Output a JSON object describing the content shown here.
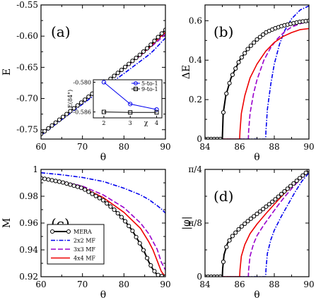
{
  "figure": {
    "legend": [
      {
        "label": "MERA",
        "color": "#000000",
        "dash": "",
        "marker": "circle"
      },
      {
        "label": "2x2 MF",
        "color": "#0000ee",
        "dash": "6,2,1.5,2",
        "marker": ""
      },
      {
        "label": "3x3 MF",
        "color": "#9900cc",
        "dash": "7,3",
        "marker": ""
      },
      {
        "label": "4x4 MF",
        "color": "#ee0000",
        "dash": "",
        "marker": ""
      }
    ]
  },
  "chart_data": [
    {
      "id": "a",
      "type": "line",
      "panel_label": "(a)",
      "xlabel": "θ",
      "ylabel": "E",
      "xlim": [
        60,
        90
      ],
      "ylim": [
        -0.765,
        -0.55
      ],
      "xticks": [
        {
          "v": 60,
          "l": "60"
        },
        {
          "v": 70,
          "l": "70"
        },
        {
          "v": 80,
          "l": "80"
        },
        {
          "v": 90,
          "l": "90"
        }
      ],
      "yticks": [
        {
          "v": -0.55,
          "l": "-0.55"
        },
        {
          "v": -0.6,
          "l": "-0.60"
        },
        {
          "v": -0.65,
          "l": "-0.65"
        },
        {
          "v": -0.7,
          "l": "-0.70"
        },
        {
          "v": -0.75,
          "l": "-0.75"
        }
      ],
      "series": [
        {
          "key": "mera",
          "x": [
            60,
            65,
            70,
            75,
            80,
            84,
            86,
            88,
            90
          ],
          "y": [
            -0.757,
            -0.731,
            -0.705,
            -0.678,
            -0.651,
            -0.629,
            -0.617,
            -0.603,
            -0.59
          ]
        },
        {
          "key": "mf2",
          "x": [
            60,
            65,
            70,
            75,
            80,
            84,
            86,
            87,
            88,
            89,
            90
          ],
          "y": [
            -0.759,
            -0.734,
            -0.709,
            -0.684,
            -0.66,
            -0.64,
            -0.63,
            -0.624,
            -0.617,
            -0.61,
            -0.603
          ]
        },
        {
          "key": "mf3",
          "x": [
            60,
            65,
            70,
            75,
            80,
            84,
            86,
            88,
            90
          ],
          "y": [
            -0.757,
            -0.731,
            -0.705,
            -0.679,
            -0.652,
            -0.631,
            -0.62,
            -0.609,
            -0.597
          ]
        },
        {
          "key": "mf4",
          "x": [
            60,
            65,
            70,
            75,
            80,
            84,
            86,
            88,
            90
          ],
          "y": [
            -0.757,
            -0.731,
            -0.705,
            -0.678,
            -0.651,
            -0.63,
            -0.619,
            -0.606,
            -0.594
          ]
        }
      ],
      "inset": {
        "ylabel": "E(84°)",
        "xlabel": "χ",
        "xlim": [
          1.6,
          4.2
        ],
        "ylim": [
          -0.5872,
          -0.5795
        ],
        "xticks": [
          {
            "v": 2,
            "l": "2"
          },
          {
            "v": 3,
            "l": "3"
          },
          {
            "v": 4,
            "l": "4"
          }
        ],
        "yticks": [
          {
            "v": -0.58,
            "l": "-0.580"
          },
          {
            "v": -0.586,
            "l": "-0.586"
          }
        ],
        "series": [
          {
            "label": "5-to-1",
            "color": "#0000ee",
            "marker": "circle",
            "x": [
              2,
              3,
              4
            ],
            "y": [
              -0.58,
              -0.5844,
              -0.5855
            ]
          },
          {
            "label": "9-to-1",
            "color": "#000000",
            "marker": "square",
            "x": [
              2,
              3,
              4
            ],
            "y": [
              -0.586,
              -0.5861,
              -0.5861
            ]
          }
        ]
      }
    },
    {
      "id": "b",
      "type": "line",
      "panel_label": "(b)",
      "xlabel": "θ",
      "ylabel": "ΔE",
      "xlim": [
        84,
        90
      ],
      "ylim": [
        0,
        0.68
      ],
      "xticks": [
        {
          "v": 84,
          "l": "84"
        },
        {
          "v": 86,
          "l": "86"
        },
        {
          "v": 88,
          "l": "88"
        },
        {
          "v": 90,
          "l": "90"
        }
      ],
      "yticks": [
        {
          "v": 0,
          "l": "0"
        },
        {
          "v": 0.2,
          "l": "0.2"
        },
        {
          "v": 0.4,
          "l": "0.4"
        },
        {
          "v": 0.6,
          "l": "0.6"
        }
      ],
      "series": [
        {
          "key": "mera",
          "x": [
            84,
            84.5,
            85,
            85.05,
            85.2,
            85.5,
            86,
            86.5,
            87,
            87.5,
            88,
            88.5,
            89,
            89.5,
            90
          ],
          "y": [
            0,
            0,
            0,
            0.13,
            0.22,
            0.31,
            0.4,
            0.46,
            0.505,
            0.54,
            0.56,
            0.575,
            0.585,
            0.595,
            0.6
          ]
        },
        {
          "key": "mf2",
          "x": [
            84,
            87.5,
            87.52,
            87.6,
            87.8,
            88,
            88.3,
            88.6,
            89,
            89.5,
            90
          ],
          "y": [
            0,
            0,
            0.04,
            0.15,
            0.28,
            0.38,
            0.48,
            0.55,
            0.61,
            0.655,
            0.675
          ]
        },
        {
          "key": "mf3",
          "x": [
            84,
            86.5,
            86.52,
            86.6,
            86.8,
            87,
            87.4,
            87.8,
            88.2,
            88.6,
            89,
            89.5,
            90
          ],
          "y": [
            0,
            0,
            0.04,
            0.13,
            0.23,
            0.3,
            0.4,
            0.465,
            0.51,
            0.545,
            0.568,
            0.585,
            0.595
          ]
        },
        {
          "key": "mf4",
          "x": [
            84,
            86,
            86.02,
            86.1,
            86.3,
            86.6,
            87,
            87.5,
            88,
            88.5,
            89,
            89.5,
            90
          ],
          "y": [
            0,
            0,
            0.04,
            0.13,
            0.22,
            0.31,
            0.38,
            0.445,
            0.49,
            0.52,
            0.54,
            0.555,
            0.56
          ]
        }
      ]
    },
    {
      "id": "c",
      "type": "line",
      "panel_label": "(c)",
      "xlabel": "θ",
      "ylabel": "M",
      "xlim": [
        60,
        90
      ],
      "ylim": [
        0.92,
        1.0
      ],
      "xticks": [
        {
          "v": 60,
          "l": "60"
        },
        {
          "v": 70,
          "l": "70"
        },
        {
          "v": 80,
          "l": "80"
        },
        {
          "v": 90,
          "l": "90"
        }
      ],
      "yticks": [
        {
          "v": 0.92,
          "l": "0.92"
        },
        {
          "v": 0.94,
          "l": "0.94"
        },
        {
          "v": 0.96,
          "l": "0.96"
        },
        {
          "v": 0.98,
          "l": "0.98"
        },
        {
          "v": 1.0,
          "l": "1"
        }
      ],
      "series": [
        {
          "key": "mera",
          "x": [
            60,
            65,
            70,
            75,
            78,
            80,
            82,
            84,
            85,
            86,
            87,
            88,
            89,
            90
          ],
          "y": [
            0.9935,
            0.9905,
            0.986,
            0.977,
            0.969,
            0.9625,
            0.9545,
            0.944,
            0.938,
            0.931,
            0.9255,
            0.9215,
            0.9205,
            0.92
          ]
        },
        {
          "key": "mf2",
          "x": [
            60,
            65,
            70,
            75,
            80,
            84,
            86,
            88,
            89,
            90
          ],
          "y": [
            0.9975,
            0.996,
            0.994,
            0.991,
            0.986,
            0.981,
            0.9775,
            0.973,
            0.9705,
            0.9675
          ]
        },
        {
          "key": "mf3",
          "x": [
            60,
            65,
            70,
            75,
            80,
            84,
            86,
            88,
            89,
            90
          ],
          "y": [
            0.9935,
            0.991,
            0.9875,
            0.981,
            0.9715,
            0.96,
            0.952,
            0.9405,
            0.931,
            0.925
          ]
        },
        {
          "key": "mf4",
          "x": [
            60,
            65,
            70,
            75,
            80,
            84,
            86,
            87,
            88,
            89,
            90
          ],
          "y": [
            0.9935,
            0.9905,
            0.9865,
            0.979,
            0.968,
            0.956,
            0.946,
            0.94,
            0.932,
            0.924,
            0.92
          ]
        }
      ],
      "legend_position": "bottom-left"
    },
    {
      "id": "d",
      "type": "line",
      "panel_label": "(d)",
      "xlabel": "θ",
      "ylabel": "|φ|",
      "xlim": [
        84,
        90
      ],
      "ylim": [
        0,
        0.785398
      ],
      "xticks": [
        {
          "v": 84,
          "l": "84"
        },
        {
          "v": 86,
          "l": "86"
        },
        {
          "v": 88,
          "l": "88"
        },
        {
          "v": 90,
          "l": "90"
        }
      ],
      "yticks": [
        {
          "v": 0,
          "l": "0"
        },
        {
          "v": 0.392699,
          "l": "π/8"
        },
        {
          "v": 0.785398,
          "l": "π/4"
        }
      ],
      "series": [
        {
          "key": "mera",
          "x": [
            84,
            84.5,
            85,
            85.02,
            85.1,
            85.3,
            85.6,
            86,
            86.5,
            87,
            87.5,
            88,
            88.5,
            89,
            89.5,
            90
          ],
          "y": [
            0,
            0,
            0,
            0.06,
            0.16,
            0.245,
            0.3,
            0.355,
            0.41,
            0.46,
            0.51,
            0.56,
            0.615,
            0.67,
            0.725,
            0.78
          ]
        },
        {
          "key": "mf2",
          "x": [
            84,
            87.5,
            87.52,
            87.6,
            87.8,
            88,
            88.4,
            88.8,
            89.2,
            89.6,
            90
          ],
          "y": [
            0,
            0,
            0.05,
            0.17,
            0.27,
            0.34,
            0.44,
            0.53,
            0.62,
            0.7,
            0.76
          ]
        },
        {
          "key": "mf3",
          "x": [
            84,
            86.5,
            86.52,
            86.6,
            86.8,
            87,
            87.4,
            87.8,
            88.2,
            88.6,
            89,
            89.5,
            90
          ],
          "y": [
            0,
            0,
            0.05,
            0.15,
            0.24,
            0.3,
            0.38,
            0.45,
            0.52,
            0.585,
            0.645,
            0.715,
            0.775
          ]
        },
        {
          "key": "mf4",
          "x": [
            84,
            86,
            86.02,
            86.1,
            86.3,
            86.6,
            87,
            87.5,
            88,
            88.5,
            89,
            89.5,
            90
          ],
          "y": [
            0,
            0,
            0.05,
            0.15,
            0.235,
            0.315,
            0.385,
            0.46,
            0.53,
            0.6,
            0.665,
            0.725,
            0.78
          ]
        }
      ]
    }
  ]
}
